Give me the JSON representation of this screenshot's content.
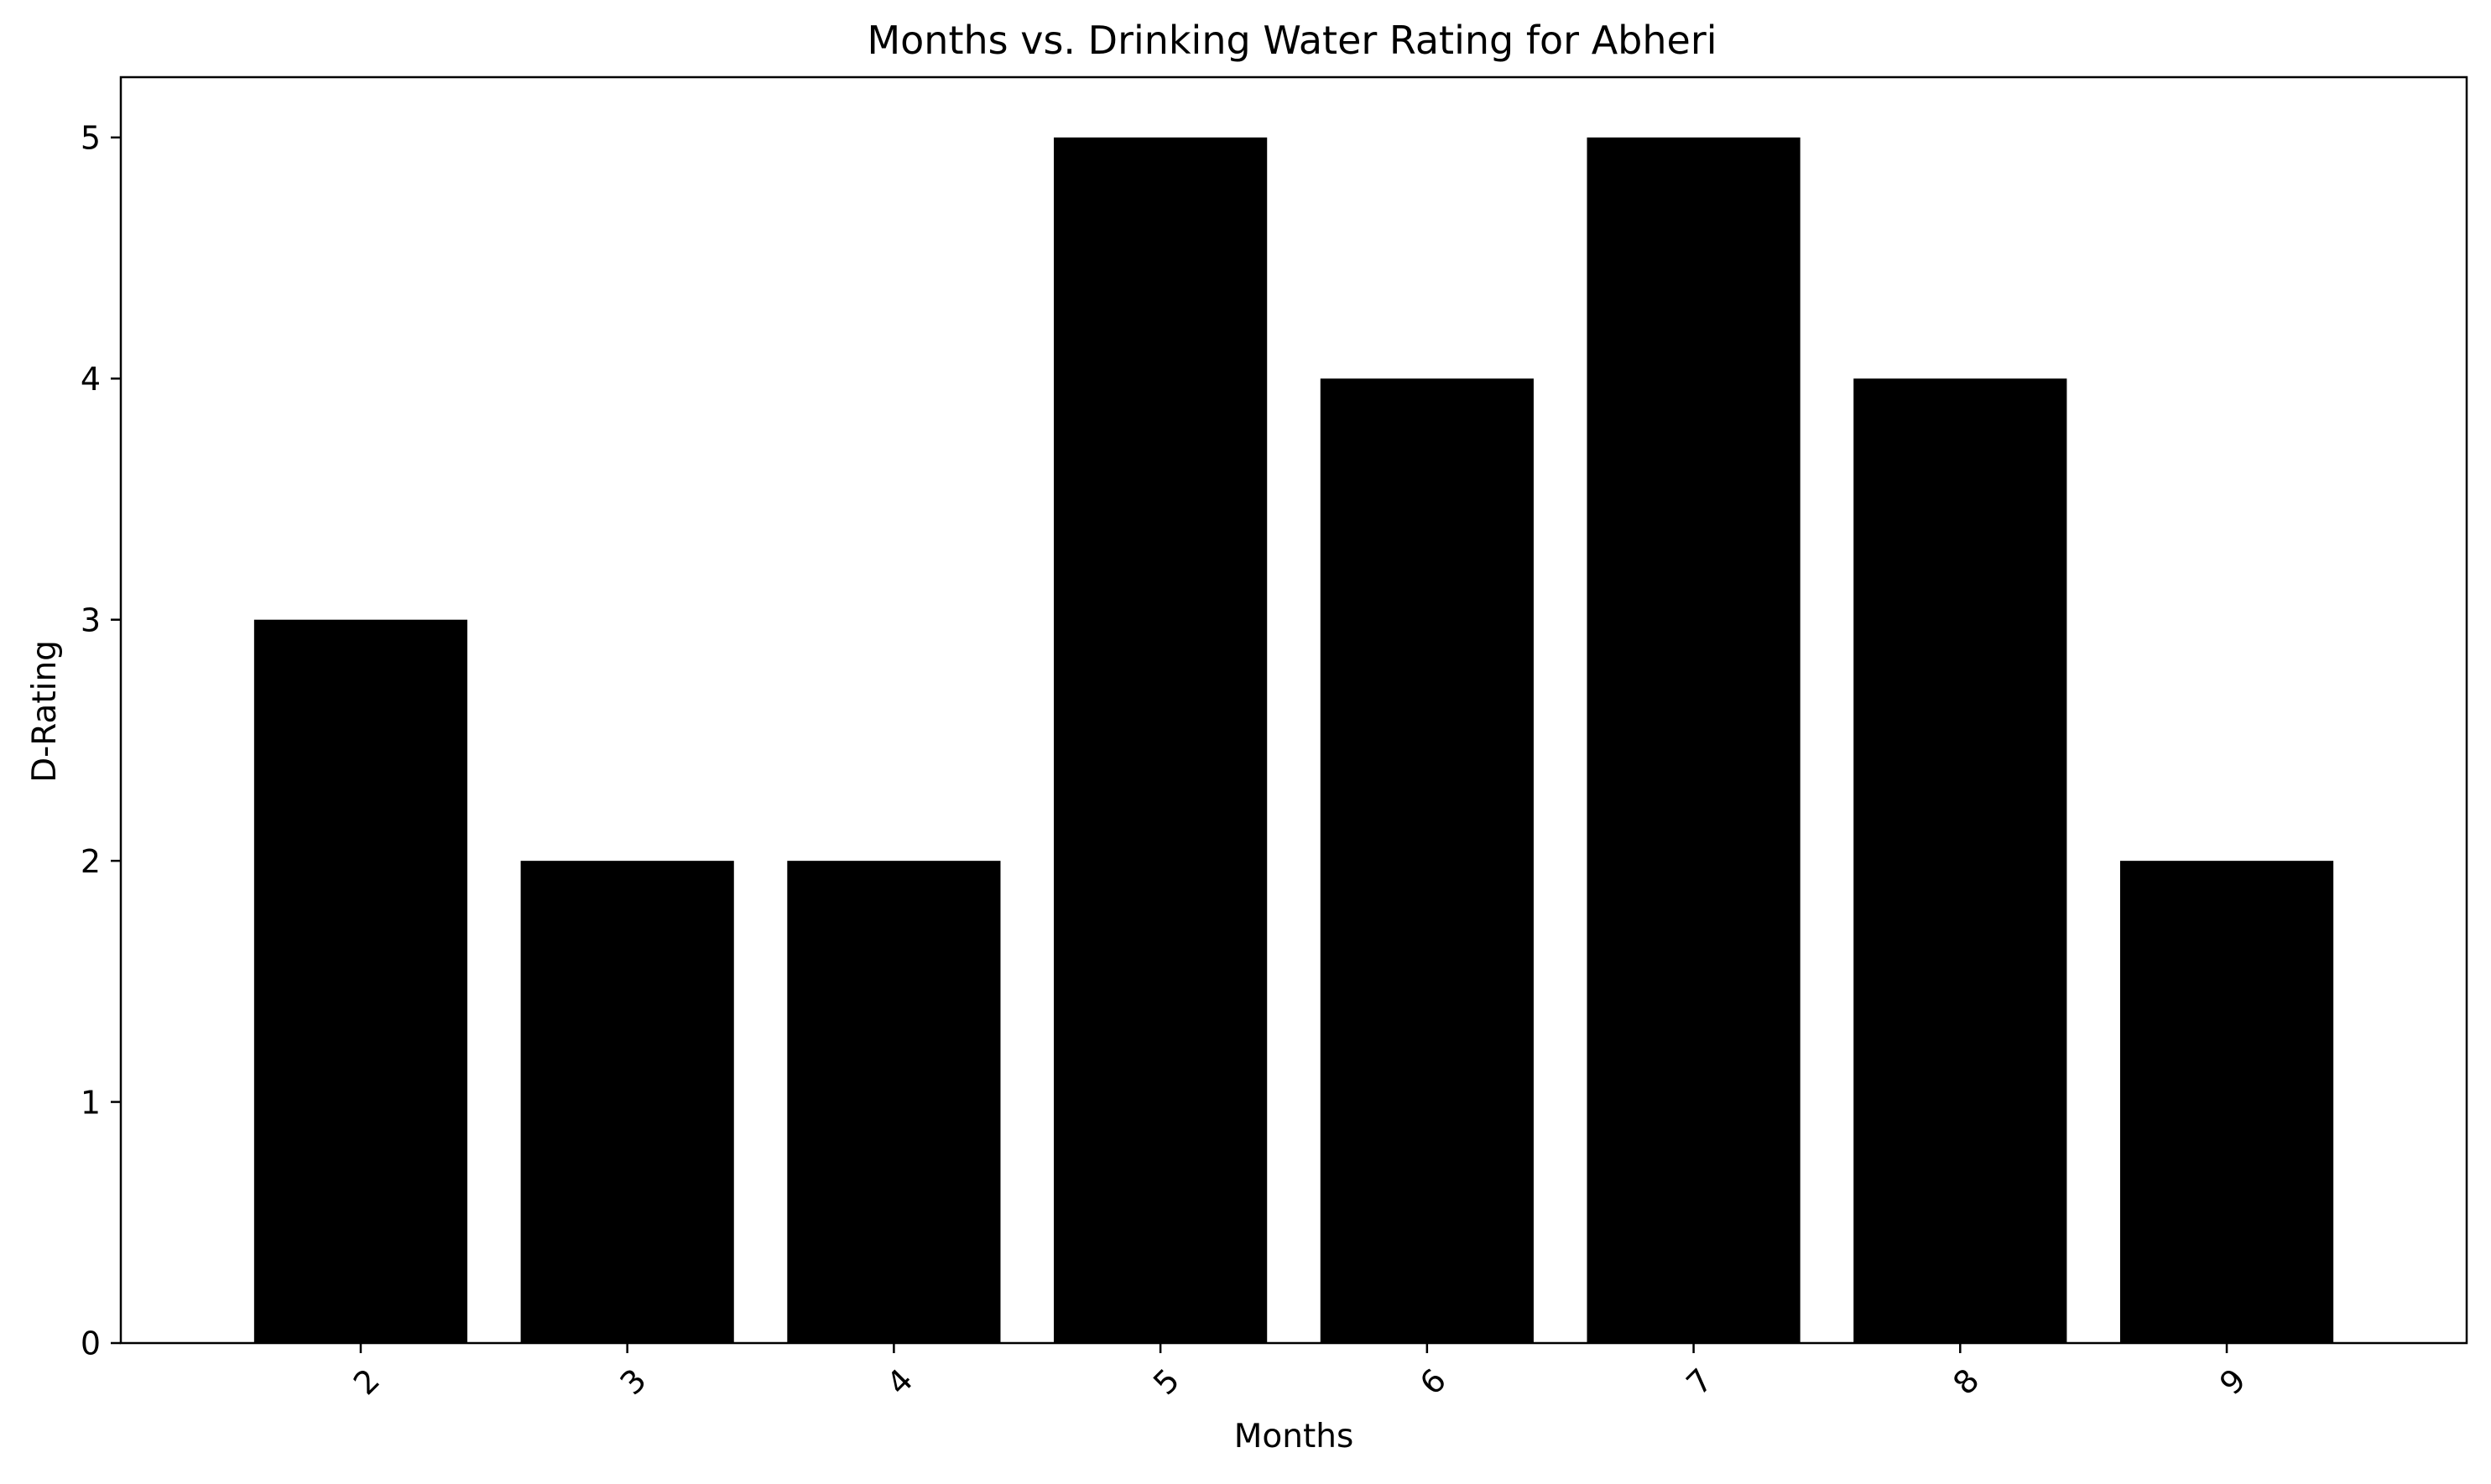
{
  "chart_data": {
    "type": "bar",
    "title": "Months vs. Drinking Water Rating for Abheri",
    "xlabel": "Months",
    "ylabel": "D-Rating",
    "categories": [
      "2",
      "3",
      "4",
      "5",
      "6",
      "7",
      "8",
      "9"
    ],
    "values": [
      3,
      2,
      2,
      5,
      4,
      5,
      4,
      2
    ],
    "ylim": [
      0,
      5.25
    ],
    "yticks": [
      "0",
      "1",
      "2",
      "3",
      "4",
      "5"
    ],
    "xtick_rotation": "45 degrees",
    "bar_color": "#000000",
    "grid": false,
    "legend": "none"
  }
}
